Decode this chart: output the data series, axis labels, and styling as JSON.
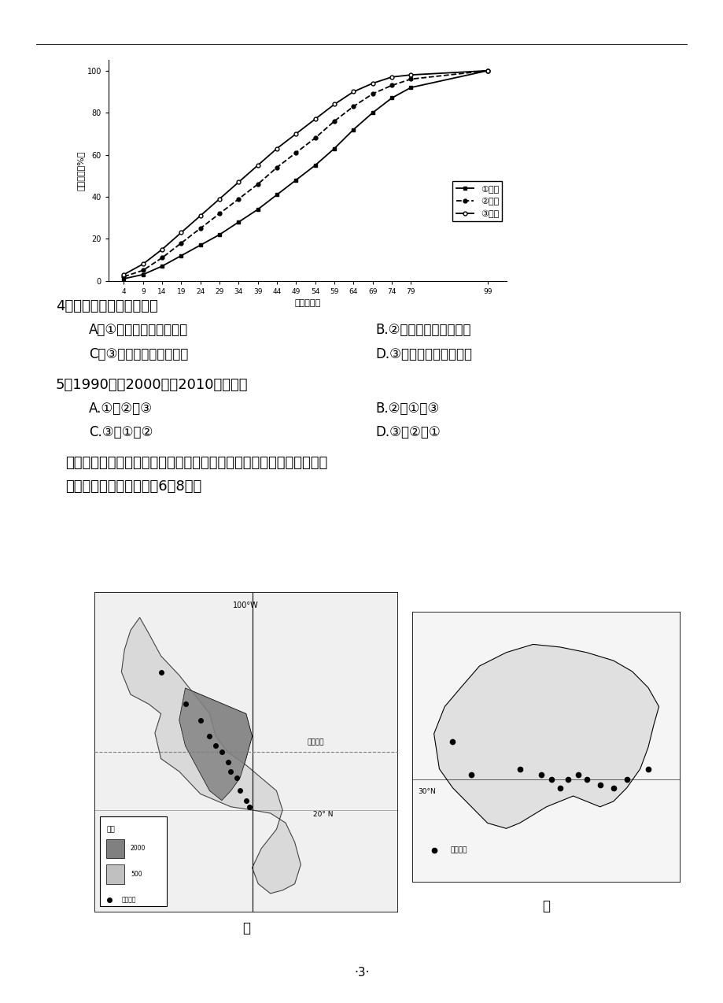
{
  "page_bg": "#ffffff",
  "top_line_y": 0.96,
  "chart": {
    "title_y_label": "累计比重（%）",
    "x_label": "年龄（岁）",
    "x_ticks": [
      4,
      9,
      14,
      19,
      24,
      29,
      34,
      39,
      44,
      49,
      54,
      59,
      64,
      69,
      74,
      79,
      99
    ],
    "y_ticks": [
      0,
      20,
      40,
      60,
      80,
      100
    ],
    "series1_label": "①年份",
    "series2_label": "②年份",
    "series3_label": "③年份",
    "series1_color": "#000000",
    "series2_color": "#000000",
    "series3_color": "#000000",
    "series1_data": [
      1,
      3,
      7,
      12,
      17,
      22,
      28,
      34,
      41,
      48,
      55,
      63,
      72,
      80,
      87,
      92,
      100
    ],
    "series2_data": [
      2,
      5,
      11,
      18,
      25,
      32,
      39,
      46,
      54,
      61,
      68,
      76,
      83,
      89,
      93,
      96,
      100
    ],
    "series3_data": [
      3,
      8,
      15,
      23,
      31,
      39,
      47,
      55,
      63,
      70,
      77,
      84,
      90,
      94,
      97,
      98,
      100
    ]
  },
  "q4_text": "4．据图可推断三个年份中",
  "q4_A": "A．①年份人口出生率最低",
  "q4_B": "B.②年份人口死亡率最高",
  "q4_C": "C．③年份人口增长率最高",
  "q4_D": "D.③年份人口抚养比最低",
  "q5_text": "5．1990年、2000年和2010年依次为",
  "q5_A": "A.①、②、③",
  "q5_B": "B.②、①、③",
  "q5_C": "C.③、①、②",
  "q5_D": "D.③、②、①",
  "para_text1": "下两图中甲图示意世界某国主要城市分布，乙图示意我国某省级行政区",
  "para_text2": "主要城镇分布。读图回答6～8题。",
  "page_num": "·3·"
}
